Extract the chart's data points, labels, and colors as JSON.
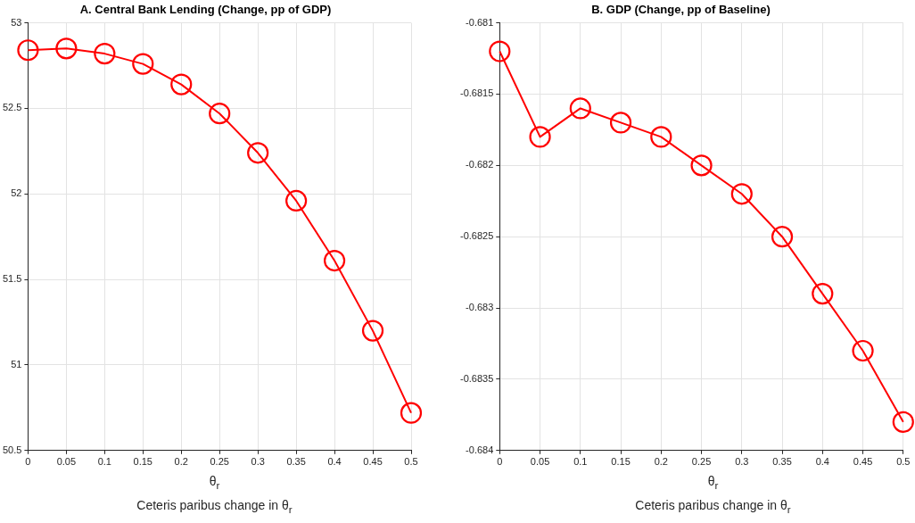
{
  "chart_data": [
    {
      "type": "line",
      "title": "A. Central Bank Lending (Change, pp of GDP)",
      "xlabel": "θ$_{r}$\nCeteris paribus change in θ$_{r}$",
      "x": [
        0,
        0.05,
        0.1,
        0.15,
        0.2,
        0.25,
        0.3,
        0.35,
        0.4,
        0.45,
        0.5
      ],
      "series": [
        {
          "color": "#ff0000",
          "values": [
            52.84,
            52.85,
            52.82,
            52.76,
            52.64,
            52.47,
            52.24,
            51.96,
            51.61,
            51.2,
            50.72
          ]
        }
      ],
      "xlim": [
        0,
        0.5
      ],
      "xticks": [
        0,
        0.05,
        0.1,
        0.15,
        0.2,
        0.25,
        0.3,
        0.35,
        0.4,
        0.45,
        0.5
      ],
      "ylim": [
        50.5,
        53
      ],
      "yticks": [
        50.5,
        51,
        51.5,
        52,
        52.5,
        53
      ],
      "grid": true,
      "marker": "circle",
      "line_style": "solid"
    },
    {
      "type": "line",
      "title": "B. GDP (Change, pp of Baseline)",
      "xlabel": "θ$_{r}$\nCeteris paribus change in θ$_{r}$",
      "x": [
        0,
        0.05,
        0.1,
        0.15,
        0.2,
        0.25,
        0.3,
        0.35,
        0.4,
        0.45,
        0.5
      ],
      "series": [
        {
          "color": "#ff0000",
          "values": [
            -0.6812,
            -0.6818,
            -0.6816,
            -0.6817,
            -0.6818,
            -0.682,
            -0.6822,
            -0.6825,
            -0.6829,
            -0.6833,
            -0.6838
          ]
        }
      ],
      "xlim": [
        0,
        0.5
      ],
      "xticks": [
        0,
        0.05,
        0.1,
        0.15,
        0.2,
        0.25,
        0.3,
        0.35,
        0.4,
        0.45,
        0.5
      ],
      "ylim": [
        -0.684,
        -0.681
      ],
      "yticks": [
        -0.684,
        -0.6835,
        -0.683,
        -0.6825,
        -0.682,
        -0.6815,
        -0.681
      ],
      "grid": true,
      "marker": "circle",
      "line_style": "solid"
    }
  ]
}
